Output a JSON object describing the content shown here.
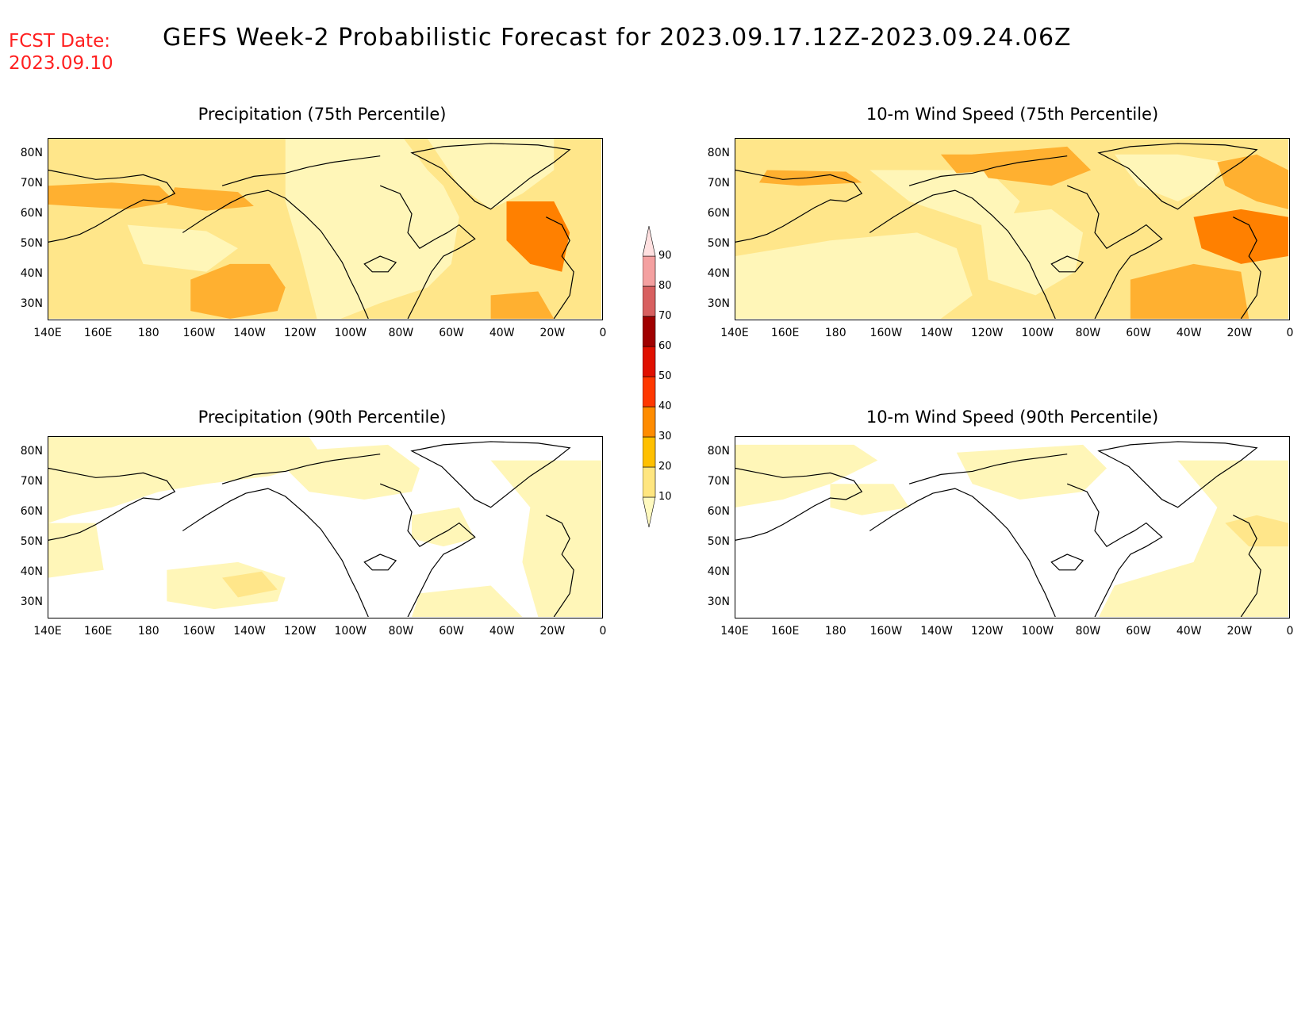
{
  "header": {
    "fcst_label": "FCST Date:",
    "fcst_date": "2023.09.10",
    "title": "GEFS Week-2 Probabilistic Forecast for 2023.09.17.12Z-2023.09.24.06Z"
  },
  "axes": {
    "lat_ticks": [
      "80N",
      "70N",
      "60N",
      "50N",
      "40N",
      "30N"
    ],
    "lon_ticks": [
      "140E",
      "160E",
      "180",
      "160W",
      "140W",
      "120W",
      "100W",
      "80W",
      "60W",
      "40W",
      "20W",
      "0"
    ]
  },
  "panels": [
    {
      "id": "precip75",
      "title": "Precipitation (75th Percentile)"
    },
    {
      "id": "wind75",
      "title": "10-m Wind Speed (75th Percentile)"
    },
    {
      "id": "precip90",
      "title": "Precipitation (90th Percentile)"
    },
    {
      "id": "wind90",
      "title": "10-m Wind Speed (90th Percentile)"
    }
  ],
  "colorbar": {
    "levels": [
      "10",
      "20",
      "30",
      "40",
      "50",
      "60",
      "70",
      "80",
      "90"
    ],
    "colors": [
      "#fffac0",
      "#ffe680",
      "#ffc000",
      "#ff8c00",
      "#ff3800",
      "#e01000",
      "#a00000",
      "#d86060",
      "#f4a0a0",
      "#ffe0e0"
    ]
  },
  "colors": {
    "fill_10_20": "#fff6b8",
    "fill_20_30": "#ffe68a",
    "fill_30_40": "#ffb030",
    "fill_40_50": "#ff8000",
    "coast": "#000000"
  }
}
